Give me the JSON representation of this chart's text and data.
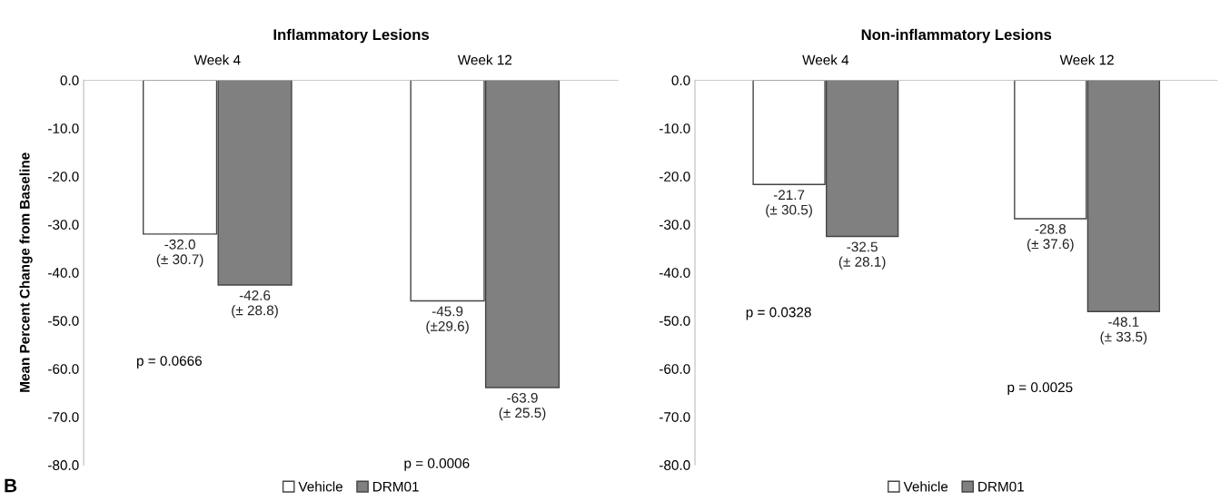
{
  "chart_data": [
    {
      "type": "bar",
      "title": "Inflammatory Lesions",
      "ylabel": "Mean Percent Change from Baseline",
      "categories": [
        "Week 4",
        "Week 12"
      ],
      "series": [
        {
          "name": "Vehicle",
          "color": "#ffffff",
          "values": [
            -32.0,
            -45.9
          ],
          "value_labels": [
            "-32.0\n(± 30.7)",
            "-45.9\n(±29.6)"
          ]
        },
        {
          "name": "DRM01",
          "color": "#808080",
          "values": [
            -42.6,
            -63.9
          ],
          "value_labels": [
            "-42.6\n(± 28.8)",
            "-63.9\n(± 25.5)"
          ]
        }
      ],
      "ylim": [
        -80,
        0
      ],
      "yticks": [
        {
          "value": 0,
          "label": "0.0"
        },
        {
          "value": -10,
          "label": "-10.0"
        },
        {
          "value": -20,
          "label": "-20.0"
        },
        {
          "value": -30,
          "label": "-30.0"
        },
        {
          "value": -40,
          "label": "-40.0"
        },
        {
          "value": -50,
          "label": "-50.0"
        },
        {
          "value": -60,
          "label": "-60.0"
        },
        {
          "value": -70,
          "label": "-70.0"
        },
        {
          "value": -80,
          "label": "-80.0"
        }
      ],
      "legend": "bottom",
      "annotations": [
        "p = 0.0666",
        "p = 0.0006",
        "B"
      ]
    },
    {
      "type": "bar",
      "title": "Non-inflammatory Lesions",
      "categories": [
        "Week 4",
        "Week 12"
      ],
      "series": [
        {
          "name": "Vehicle",
          "color": "#ffffff",
          "values": [
            -21.7,
            -28.8
          ],
          "value_labels": [
            "-21.7\n(± 30.5)",
            "-28.8\n(± 37.6)"
          ]
        },
        {
          "name": "DRM01",
          "color": "#808080",
          "values": [
            -32.5,
            -48.1
          ],
          "value_labels": [
            "-32.5\n(± 28.1)",
            "-48.1\n(± 33.5)"
          ]
        }
      ],
      "ylim": [
        -80,
        0
      ],
      "yticks": [
        {
          "value": 0,
          "label": "0.0"
        },
        {
          "value": -10,
          "label": "-10.0"
        },
        {
          "value": -20,
          "label": "-20.0"
        },
        {
          "value": -30,
          "label": "-30.0"
        },
        {
          "value": -40,
          "label": "-40.0"
        },
        {
          "value": -50,
          "label": "-50.0"
        },
        {
          "value": -60,
          "label": "-60.0"
        },
        {
          "value": -70,
          "label": "-70.0"
        },
        {
          "value": -80,
          "label": "-80.0"
        }
      ],
      "legend": "bottom",
      "annotations": [
        "p = 0.0328",
        "p = 0.0025"
      ]
    }
  ]
}
